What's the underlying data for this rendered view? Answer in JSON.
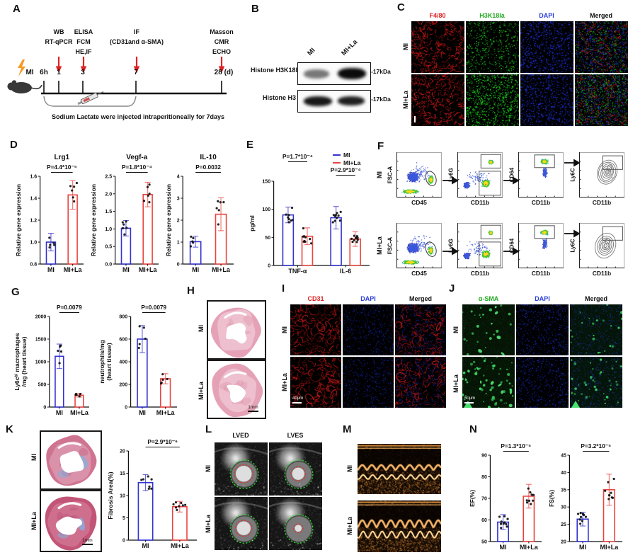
{
  "colors": {
    "mi_blue": "#3232cf",
    "la_red": "#ea4440",
    "accent_red": "#e02020",
    "accent_green": "#22aa22",
    "accent_blue": "#2b3fd6"
  },
  "panels": {
    "A": {
      "label": "A",
      "mi": "MI",
      "start": "6h",
      "timepoint_labels": [
        "1",
        "3",
        "7"
      ],
      "end_label": "28 (d)",
      "groups": [
        [
          "WB",
          "RT-qPCR"
        ],
        [
          "ELISA",
          "FCM",
          "HE,IF"
        ],
        [
          "IF",
          "(CD31and α-SMA)"
        ],
        [
          "Masson",
          "CMR",
          "ECHO"
        ]
      ],
      "caption": "Sodium Lactate were injected intraperitioneally for 7days"
    },
    "B": {
      "label": "B",
      "lanes": [
        "MI",
        "MI+La"
      ],
      "rows": [
        {
          "name": "Histone H3K18la",
          "marker": "-17kDa"
        },
        {
          "name": "Histone H3",
          "marker": "-17kDa"
        }
      ]
    },
    "C": {
      "label": "C",
      "cols": [
        "F4/80",
        "H3K18la",
        "DAPI",
        "Merged"
      ],
      "rows": [
        "MI",
        "MI+La"
      ]
    },
    "D": {
      "label": "D"
    },
    "E": {
      "label": "E"
    },
    "F": {
      "label": "F",
      "rows": [
        "MI",
        "MI+La"
      ],
      "xlabels": [
        "CD45",
        "CD11b",
        "CD11b",
        "CD11b"
      ],
      "ylabels": [
        "FSC-A",
        "Ly6G",
        "CD64",
        "Ly6C"
      ]
    },
    "G": {
      "label": "G"
    },
    "H": {
      "label": "H",
      "rows": [
        "MI",
        "MI+La"
      ],
      "scale": "1mm"
    },
    "I": {
      "label": "I",
      "cols": [
        "CD31",
        "DAPI",
        "Merged"
      ],
      "rows": [
        "MI",
        "MI+La"
      ],
      "scale": "40μm"
    },
    "J": {
      "label": "J",
      "cols": [
        "α-SMA",
        "DAPI",
        "Merged"
      ],
      "rows": [
        "MI",
        "MI+La"
      ],
      "scale": "50μm"
    },
    "K": {
      "label": "K",
      "rows": [
        "MI",
        "MI+La"
      ],
      "scale": "1mm"
    },
    "L": {
      "label": "L",
      "cols": [
        "LVED",
        "LVES"
      ],
      "rows": [
        "MI",
        "MI+La"
      ]
    },
    "M": {
      "label": "M",
      "rows": [
        "MI",
        "MI+La"
      ]
    },
    "N": {
      "label": "N"
    }
  },
  "chart_data": [
    {
      "type": "bar",
      "title": "Lrg1",
      "pvalue": "P=4.4*10⁻⁵",
      "ylabel": "Relative gene expression",
      "categories": [
        "MI",
        "MI+La"
      ],
      "values": [
        1.0,
        1.43
      ],
      "errors": [
        0.08,
        0.13
      ],
      "n": [
        5,
        6
      ],
      "yticks": [
        "0.8",
        "1.0",
        "1.2",
        "1.4",
        "1.6"
      ],
      "ylim": [
        0.8,
        1.6
      ]
    },
    {
      "type": "bar",
      "title": "Vegf-a",
      "pvalue": "P=1.8*10⁻⁴",
      "ylabel": "Relative gene expression",
      "categories": [
        "MI",
        "MI+La"
      ],
      "values": [
        1.02,
        1.98
      ],
      "errors": [
        0.22,
        0.35
      ],
      "n": [
        6,
        6
      ],
      "yticks": [
        "0.0",
        "0.5",
        "1.0",
        "1.5",
        "2.0",
        "2.5"
      ],
      "ylim": [
        0,
        2.5
      ]
    },
    {
      "type": "bar",
      "title": "IL-10",
      "pvalue": "P=0.0032",
      "ylabel": "Relative gene expression",
      "categories": [
        "MI",
        "MI+La"
      ],
      "values": [
        1.02,
        2.27
      ],
      "errors": [
        0.25,
        0.75
      ],
      "n": [
        5,
        6
      ],
      "yticks": [
        "0",
        "1",
        "2",
        "3",
        "4"
      ],
      "ylim": [
        0,
        4
      ]
    },
    {
      "type": "grouped-bar",
      "ylabel": "pg/ml",
      "categories": [
        "TNF-α",
        "IL-6"
      ],
      "series": [
        {
          "name": "MI",
          "values": [
            90,
            85
          ],
          "errors": [
            14,
            20
          ],
          "n": [
            8,
            10
          ]
        },
        {
          "name": "MI+La",
          "values": [
            52,
            47
          ],
          "errors": [
            15,
            13
          ],
          "n": [
            9,
            10
          ]
        }
      ],
      "pvalues": [
        "P=1.7*10⁻⁴",
        "P=2.9*10⁻⁴"
      ],
      "legend": [
        "MI",
        "MI+La"
      ],
      "yticks": [
        "0",
        "50",
        "100",
        "150"
      ],
      "ylim": [
        0,
        150
      ]
    },
    {
      "type": "bar",
      "pvalue": "P=0.0079",
      "ylabel": [
        "Ly6cʰⁱ macrophages",
        "/mg (heart tissue)"
      ],
      "categories": [
        "MI",
        "MI+La"
      ],
      "values": [
        1120,
        260
      ],
      "errors": [
        270,
        40
      ],
      "n": [
        5,
        5
      ],
      "yticks": [
        "0",
        "500",
        "1000",
        "1500",
        "2000"
      ],
      "ylim": [
        0,
        2000
      ]
    },
    {
      "type": "bar",
      "pvalue": "P=0.0079",
      "ylabel": [
        "neutrophils/mg",
        "(heart tissue)"
      ],
      "categories": [
        "MI",
        "MI+La"
      ],
      "values": [
        600,
        250
      ],
      "errors": [
        120,
        45
      ],
      "n": [
        5,
        5
      ],
      "yticks": [
        "0",
        "200",
        "400",
        "600",
        "800"
      ],
      "ylim": [
        0,
        800
      ]
    },
    {
      "type": "bar",
      "pvalue": "P=2.9*10⁻⁶",
      "ylabel": "Fibrosis Area(%)",
      "categories": [
        "MI",
        "MI+La"
      ],
      "values": [
        12.9,
        7.5
      ],
      "errors": [
        1.8,
        1.2
      ],
      "n": [
        7,
        8
      ],
      "yticks": [
        "0",
        "5",
        "10",
        "15",
        "20"
      ],
      "ylim": [
        0,
        20
      ]
    },
    {
      "type": "bar",
      "pvalue": "P=1.3*10⁻⁵",
      "ylabel": "EF(%)",
      "categories": [
        "MI",
        "MI+La"
      ],
      "values": [
        59,
        71
      ],
      "errors": [
        3.5,
        5.5
      ],
      "n": [
        10,
        9
      ],
      "yticks": [
        "50",
        "60",
        "70",
        "80",
        "90"
      ],
      "ylim": [
        50,
        90
      ]
    },
    {
      "type": "bar",
      "pvalue": "P=3.2*10⁻⁵",
      "ylabel": "FS(%)",
      "categories": [
        "MI",
        "MI+La"
      ],
      "values": [
        26.5,
        35
      ],
      "errors": [
        2,
        4.5
      ],
      "n": [
        10,
        9
      ],
      "yticks": [
        "20",
        "25",
        "30",
        "35",
        "40",
        "45"
      ],
      "ylim": [
        20,
        45
      ]
    }
  ]
}
